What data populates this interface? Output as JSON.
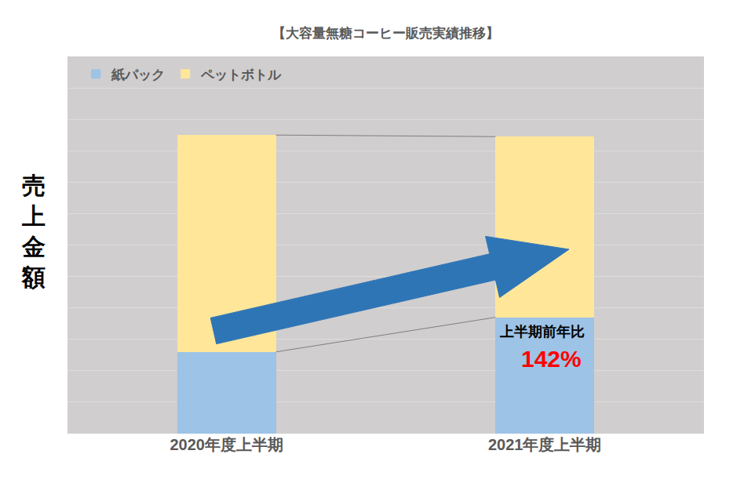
{
  "chart_data": {
    "type": "bar",
    "title": "【大容量無糖コーヒー販売実績推移】",
    "y_label": "売上金額",
    "categories": [
      "2020年度上半期",
      "2021年度上半期"
    ],
    "series": [
      {
        "name": "紙パック",
        "color": "#9DC3E6",
        "values": [
          2.6,
          3.7
        ]
      },
      {
        "name": "ペットボトル",
        "color": "#FFE699",
        "values": [
          6.9,
          5.75
        ]
      }
    ],
    "ylim": [
      0,
      12
    ],
    "yticks": [
      0,
      1,
      2,
      3,
      4,
      5,
      6,
      7,
      8,
      9,
      10,
      11,
      12
    ],
    "grid": true,
    "stacked": true,
    "legend": "upper left",
    "tick_labels": "x",
    "annotations": [
      {
        "text": "上半期前年比"
      },
      {
        "text": "142%"
      }
    ]
  }
}
